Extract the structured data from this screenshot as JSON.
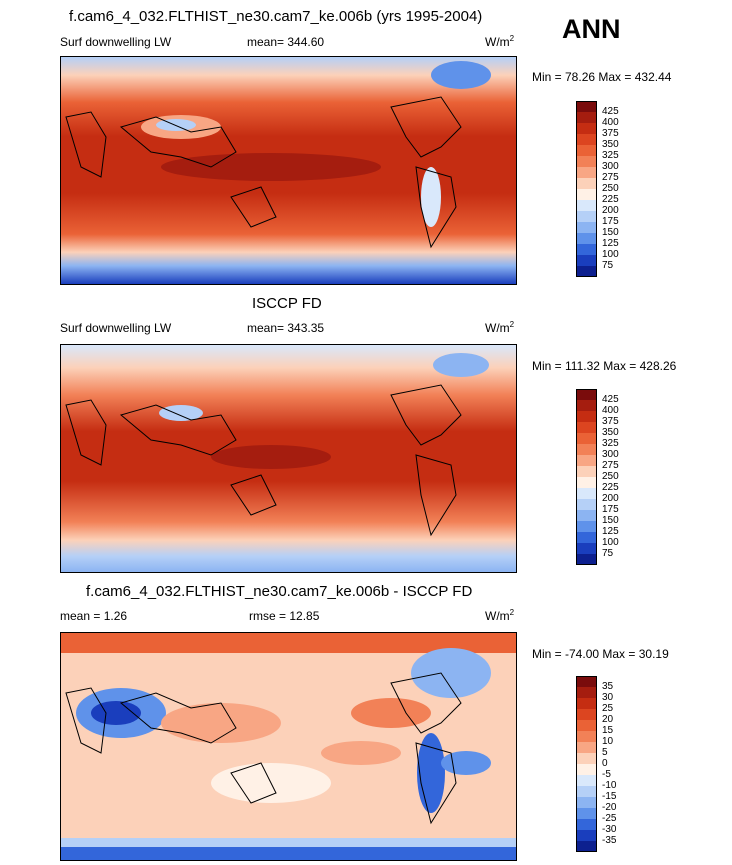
{
  "season": "ANN",
  "panels": [
    {
      "title": "f.cam6_4_032.FLTHIST_ne30.cam7_ke.006b (yrs 1995-2004)",
      "left_label": "Surf downwelling LW",
      "mean_text": "mean= 344.60",
      "units_base": "W/m",
      "units_exp": "2",
      "minmax": "Min =  78.26 Max = 432.44",
      "colorbar": {
        "levels": [
          "425",
          "400",
          "375",
          "350",
          "325",
          "300",
          "275",
          "250",
          "225",
          "200",
          "175",
          "150",
          "125",
          "100",
          "75"
        ],
        "colors": [
          "#7a0c0c",
          "#a51d0f",
          "#c52d12",
          "#dc4520",
          "#ea6236",
          "#f28157",
          "#f8a684",
          "#fcd1b9",
          "#fff1e6",
          "#d9e8fb",
          "#b5d0f7",
          "#8cb4f2",
          "#5f92ea",
          "#3366da",
          "#1a3ebd",
          "#0d208f"
        ]
      }
    },
    {
      "title": "ISCCP FD",
      "left_label": "Surf downwelling LW",
      "mean_text": "mean= 343.35",
      "units_base": "W/m",
      "units_exp": "2",
      "minmax": "Min = 111.32 Max = 428.26",
      "colorbar": {
        "levels": [
          "425",
          "400",
          "375",
          "350",
          "325",
          "300",
          "275",
          "250",
          "225",
          "200",
          "175",
          "150",
          "125",
          "100",
          "75"
        ],
        "colors": [
          "#7a0c0c",
          "#a51d0f",
          "#c52d12",
          "#dc4520",
          "#ea6236",
          "#f28157",
          "#f8a684",
          "#fcd1b9",
          "#fff1e6",
          "#d9e8fb",
          "#b5d0f7",
          "#8cb4f2",
          "#5f92ea",
          "#3366da",
          "#1a3ebd",
          "#0d208f"
        ]
      }
    },
    {
      "title": "f.cam6_4_032.FLTHIST_ne30.cam7_ke.006b - ISCCP FD",
      "left_label": "mean =   1.26",
      "mean_text": "rmse =  12.85",
      "units_base": "W/m",
      "units_exp": "2",
      "minmax": "Min = -74.00 Max =  30.19",
      "colorbar": {
        "levels": [
          "35",
          "30",
          "25",
          "20",
          "15",
          "10",
          "5",
          "0",
          "-5",
          "-10",
          "-15",
          "-20",
          "-25",
          "-30",
          "-35"
        ],
        "colors": [
          "#7a0c0c",
          "#a51d0f",
          "#c52d12",
          "#dc4520",
          "#ea6236",
          "#f28157",
          "#f8a684",
          "#fcd1b9",
          "#fff1e6",
          "#d9e8fb",
          "#b5d0f7",
          "#8cb4f2",
          "#5f92ea",
          "#3366da",
          "#1a3ebd",
          "#0d208f"
        ]
      }
    }
  ]
}
